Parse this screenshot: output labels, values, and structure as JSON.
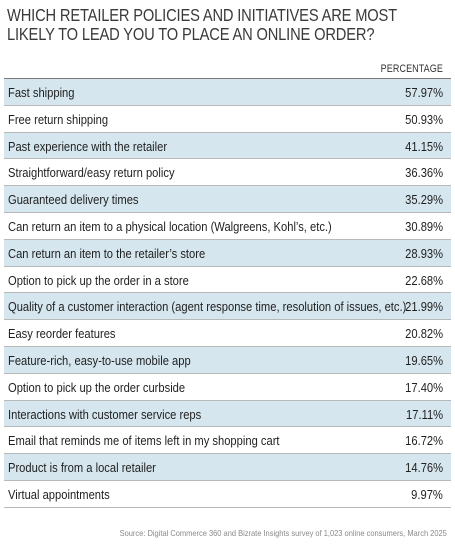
{
  "chart_data": {
    "type": "table",
    "title_lines": [
      "WHICH RETAILER POLICIES AND INITIATIVES ARE MOST",
      "LIKELY TO LEAD YOU TO PLACE AN ONLINE ORDER?"
    ],
    "column_header": "PERCENTAGE",
    "rows": [
      {
        "label": "Fast shipping",
        "value": "57.97%"
      },
      {
        "label": "Free return shipping",
        "value": "50.93%"
      },
      {
        "label": "Past experience with the retailer",
        "value": "41.15%"
      },
      {
        "label": "Straightforward/easy return policy",
        "value": "36.36%"
      },
      {
        "label": "Guaranteed delivery times",
        "value": "35.29%"
      },
      {
        "label": "Can return an item to a physical location (Walgreens, Kohl’s, etc.)",
        "value": "30.89%"
      },
      {
        "label": "Can return an item to the retailer’s store",
        "value": "28.93%"
      },
      {
        "label": "Option to pick up the order in a store",
        "value": "22.68%"
      },
      {
        "label": "Quality of a customer interaction (agent response time, resolution of issues, etc.)",
        "value": "21.99%"
      },
      {
        "label": "Easy reorder features",
        "value": "20.82%"
      },
      {
        "label": "Feature-rich, easy-to-use mobile app",
        "value": "19.65%"
      },
      {
        "label": "Option to pick up the order curbside",
        "value": "17.40%"
      },
      {
        "label": "Interactions with customer service reps",
        "value": "17.11%"
      },
      {
        "label": "Email that reminds me of items left in my shopping cart",
        "value": "16.72%"
      },
      {
        "label": "Product is from a local retailer",
        "value": "14.76%"
      },
      {
        "label": "Virtual appointments",
        "value": "9.97%"
      }
    ],
    "source": "Source: Digital Commerce 360 and Bizrate Insights survey of 1,023 online consumers, March 2025"
  },
  "colors": {
    "shaded_row": "#d5e6ee",
    "rule": "#b9b9b9",
    "text": "#1f1f1f",
    "source_text": "#8a8a8a"
  }
}
